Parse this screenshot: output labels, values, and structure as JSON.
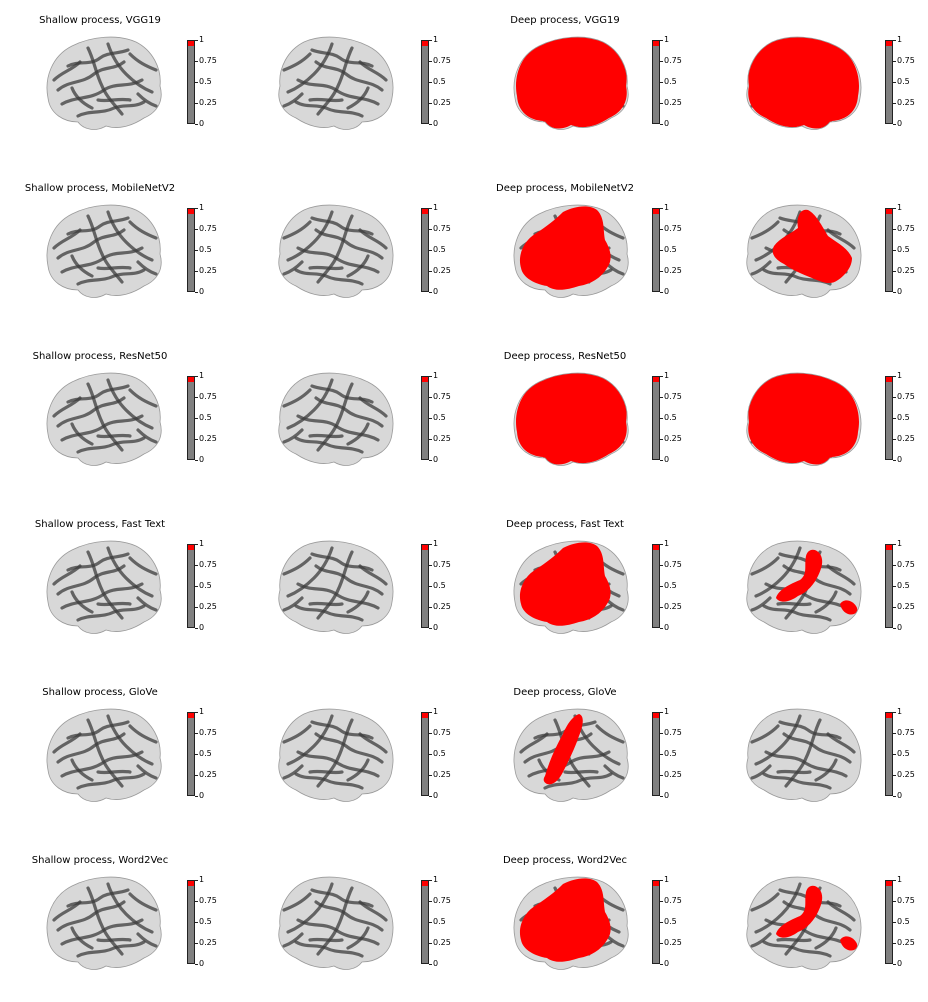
{
  "figure": {
    "colors": {
      "significant": "#ff0000",
      "cortex_light": "#d8d8d8",
      "cortex_dark": "#3c3c3c",
      "colorbar_base": "#808080"
    },
    "colorbar_ticks": [
      "1",
      "0.75",
      "0.5",
      "0.25",
      "0"
    ],
    "rows": [
      {
        "shallow_title": "Shallow process, VGG19",
        "deep_title": "Deep process, VGG19",
        "deep_left_coverage": "extensive",
        "deep_right_coverage": "extensive"
      },
      {
        "shallow_title": "Shallow process, MobileNetV2",
        "deep_title": "Deep process, MobileNetV2",
        "deep_left_coverage": "large",
        "deep_right_coverage": "medium"
      },
      {
        "shallow_title": "Shallow process, ResNet50",
        "deep_title": "Deep process, ResNet50",
        "deep_left_coverage": "extensive",
        "deep_right_coverage": "extensive"
      },
      {
        "shallow_title": "Shallow process, Fast Text",
        "deep_title": "Deep process, Fast Text",
        "deep_left_coverage": "large",
        "deep_right_coverage": "small"
      },
      {
        "shallow_title": "Shallow process, GloVe",
        "deep_title": "Deep process, GloVe",
        "deep_left_coverage": "strip",
        "deep_right_coverage": "none"
      },
      {
        "shallow_title": "Shallow process, Word2Vec",
        "deep_title": "Deep process, Word2Vec",
        "deep_left_coverage": "large",
        "deep_right_coverage": "small"
      }
    ]
  }
}
